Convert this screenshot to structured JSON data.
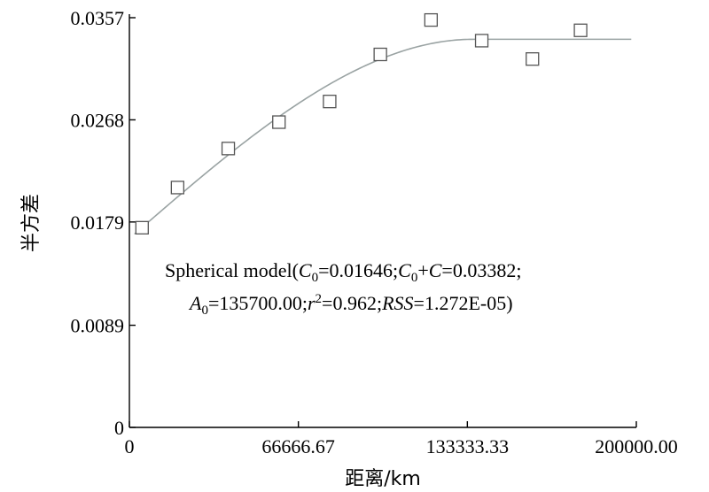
{
  "chart_data": {
    "type": "scatter",
    "xlabel": "距离/km",
    "ylabel": "半方差",
    "xlim": [
      0,
      200000
    ],
    "ylim": [
      0,
      0.0357
    ],
    "x_ticks": [
      0,
      66666.67,
      133333.33,
      200000
    ],
    "x_tick_labels": [
      "0",
      "66666.67",
      "133333.33",
      "200000.00"
    ],
    "y_ticks": [
      0,
      0.0089,
      0.0179,
      0.0268,
      0.0357
    ],
    "y_tick_labels": [
      "0",
      "0.0089",
      "0.0179",
      "0.0268",
      "0.0357"
    ],
    "points": [
      {
        "x": 5000,
        "y": 0.0174
      },
      {
        "x": 19000,
        "y": 0.0209
      },
      {
        "x": 39000,
        "y": 0.0243
      },
      {
        "x": 59000,
        "y": 0.0266
      },
      {
        "x": 79000,
        "y": 0.0284
      },
      {
        "x": 99000,
        "y": 0.0325
      },
      {
        "x": 119000,
        "y": 0.0355
      },
      {
        "x": 139000,
        "y": 0.0337
      },
      {
        "x": 159000,
        "y": 0.0321
      },
      {
        "x": 178000,
        "y": 0.0346
      }
    ],
    "model": {
      "type": "spherical",
      "nugget": 0.01646,
      "sill": 0.03382,
      "range": 135700
    },
    "annotation": {
      "line1": [
        {
          "text": "Spherical model(",
          "italic": false
        },
        {
          "text": "C",
          "italic": true
        },
        {
          "text": "0",
          "sub": true
        },
        {
          "text": "=0.01646;",
          "italic": false
        },
        {
          "text": "C",
          "italic": true
        },
        {
          "text": "0",
          "sub": true
        },
        {
          "text": "+",
          "italic": false
        },
        {
          "text": "C",
          "italic": true
        },
        {
          "text": "=0.03382;",
          "italic": false
        }
      ],
      "line2": [
        {
          "text": "A",
          "italic": true
        },
        {
          "text": "0",
          "sub": true
        },
        {
          "text": "=135700.00;",
          "italic": false
        },
        {
          "text": "r",
          "italic": true
        },
        {
          "text": "2",
          "sup": true
        },
        {
          "text": "=0.962;",
          "italic": false
        },
        {
          "text": "RSS",
          "italic": true
        },
        {
          "text": "=1.272E-05)",
          "italic": false
        }
      ]
    }
  }
}
